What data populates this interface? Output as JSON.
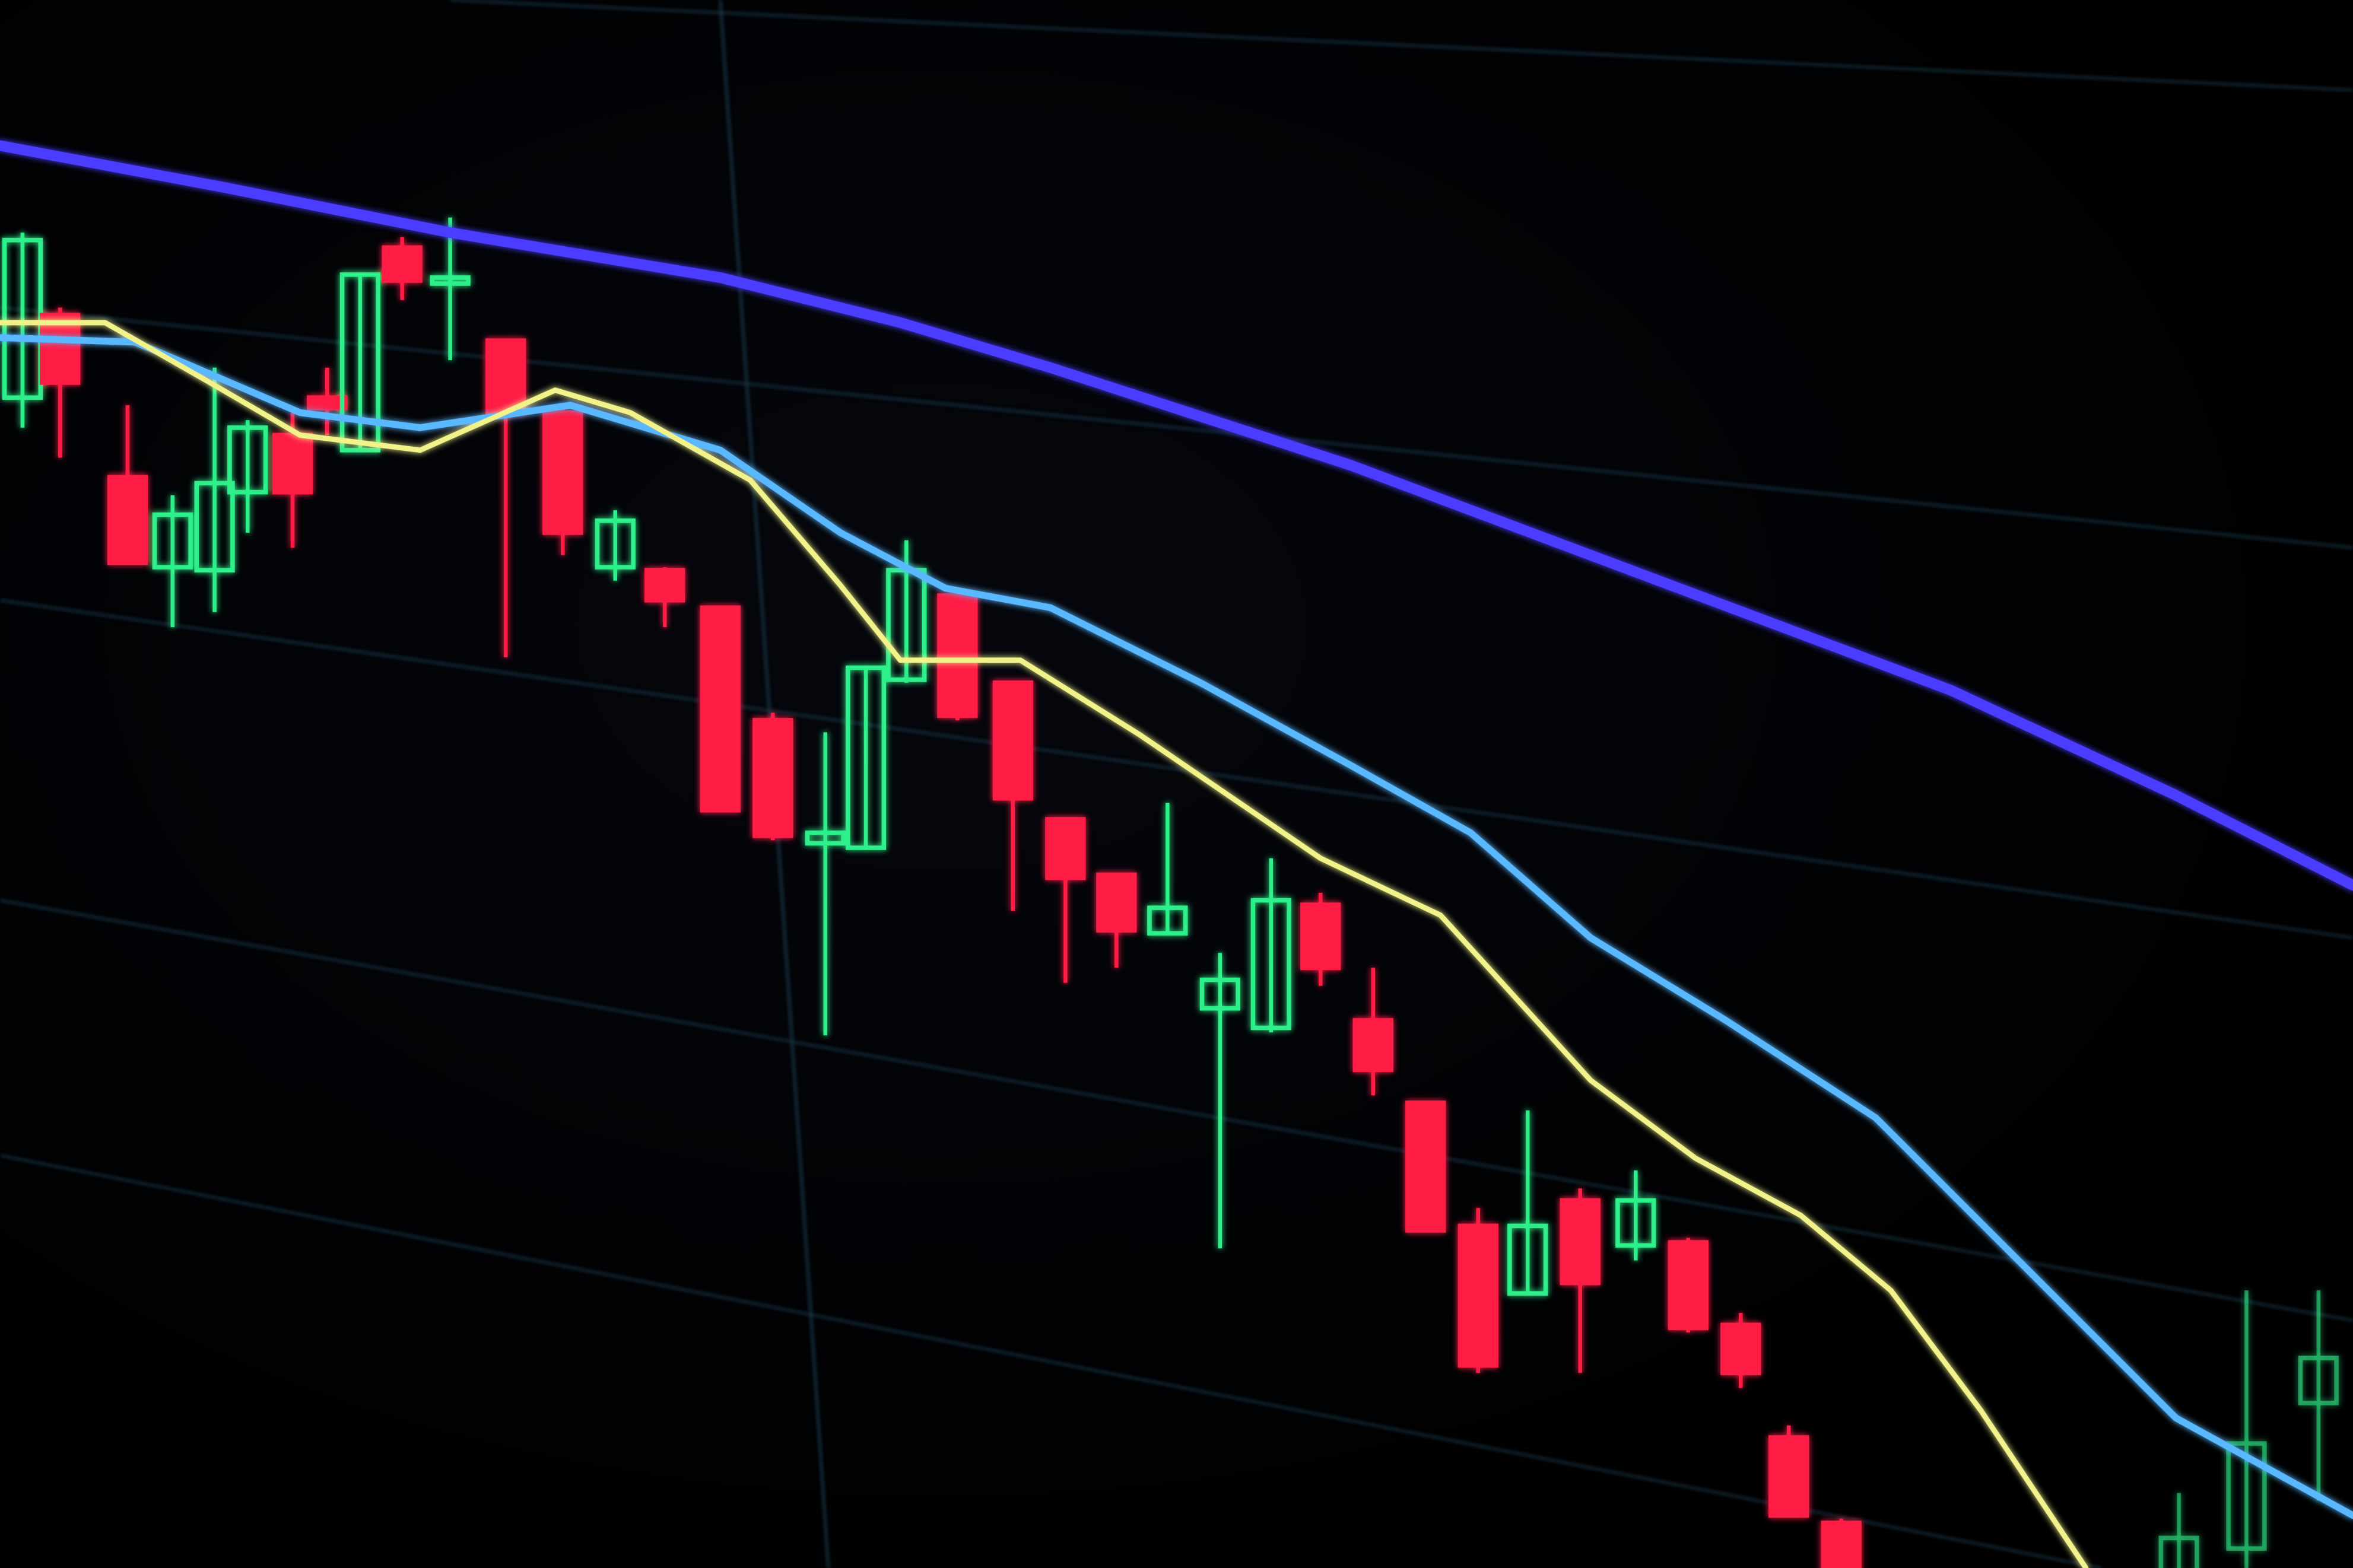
{
  "scene": {
    "subject": "candlestick-screen-photo",
    "colors": {
      "background": "#000000",
      "bearish_candle": "#ff1f45",
      "bullish_candle": "#2ef08a",
      "slow_average": "#4b3cff",
      "mid_average": "#5ab8ff",
      "fast_average": "#f2f28a",
      "grid": "#1d3a4a"
    },
    "icons": [
      "candlestick",
      "moving-average-line"
    ]
  }
}
